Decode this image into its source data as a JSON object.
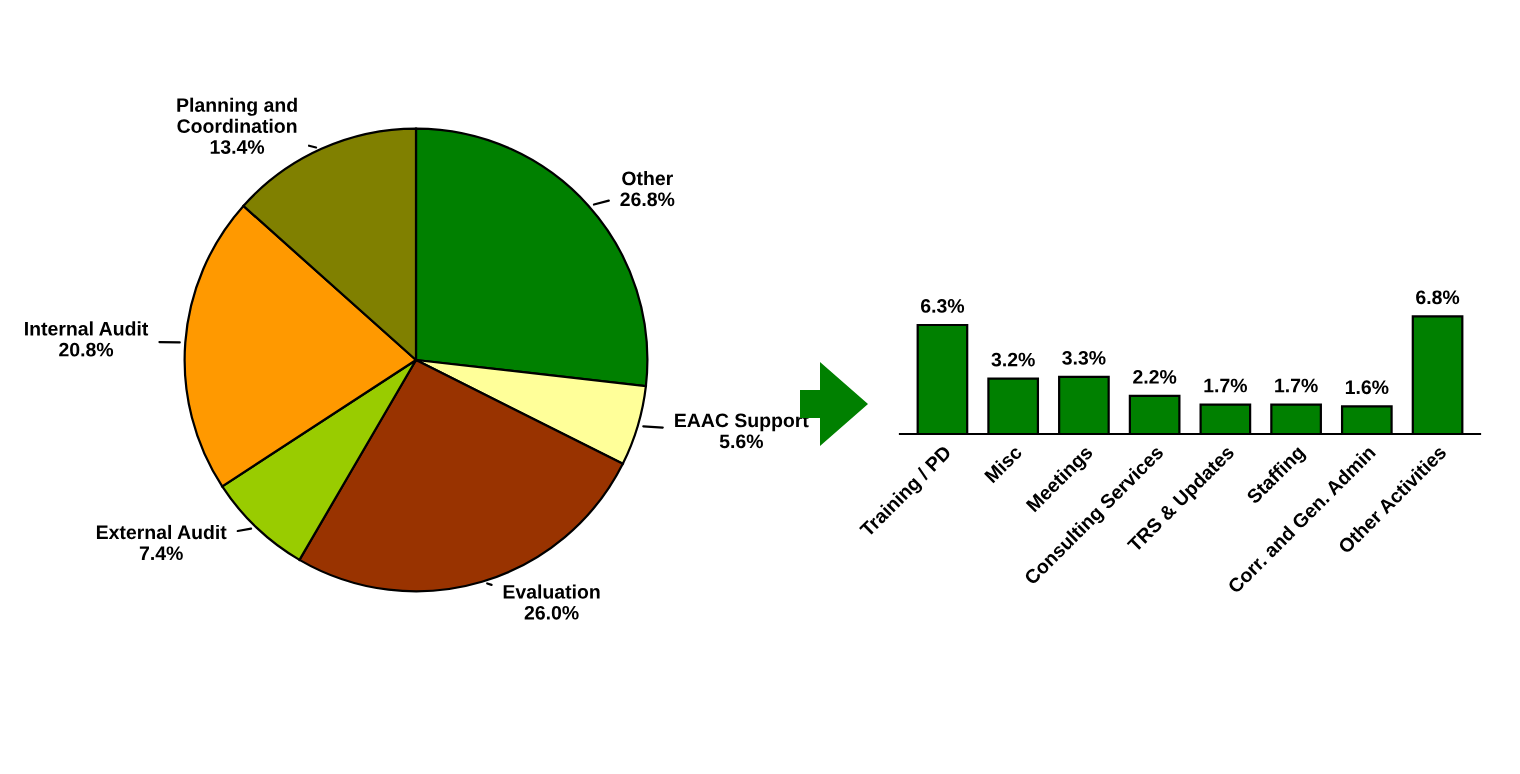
{
  "chart_data": [
    {
      "type": "pie",
      "categories": [
        "Other",
        "EAAC Support",
        "Evaluation",
        "External Audit",
        "Internal Audit",
        "Planning and Coordination"
      ],
      "values": [
        26.8,
        5.6,
        26.0,
        7.4,
        20.8,
        13.4
      ],
      "value_labels": [
        "26.8%",
        "5.6%",
        "26.0%",
        "7.4%",
        "20.8%",
        "13.4%"
      ],
      "colors": [
        "#008000",
        "#ffff99",
        "#993300",
        "#99cc00",
        "#ff9900",
        "#808000"
      ]
    },
    {
      "type": "bar",
      "categories": [
        "Training / PD",
        "Misc",
        "Meetings",
        "Consulting Services",
        "TRS & Updates",
        "Staffing",
        "Corr. and Gen. Admin",
        "Other Activities"
      ],
      "values": [
        6.3,
        3.2,
        3.3,
        2.2,
        1.7,
        1.7,
        1.6,
        6.8
      ],
      "value_labels": [
        "6.3%",
        "3.2%",
        "3.3%",
        "2.2%",
        "1.7%",
        "1.7%",
        "1.6%",
        "6.8%"
      ],
      "color": "#008000"
    }
  ]
}
